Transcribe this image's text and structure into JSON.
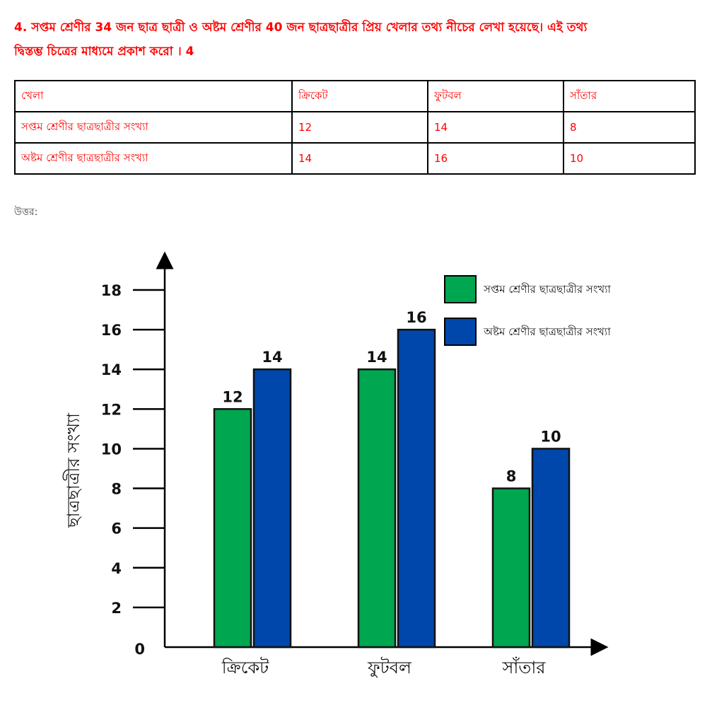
{
  "question": {
    "line1": "4. সপ্তম শ্রেণীর 34 জন ছাত্র ছাত্রী ও অষ্টম শ্রেণীর 40 জন ছাত্রছাত্রীর প্রিয় খেলার তথ্য নীচের লেখা হয়েছে। এই তথ্য",
    "line2": "দ্বিস্তম্ভ চিত্রের মাধ্যমে প্রকাশ করো । 4"
  },
  "table": {
    "headers": [
      "খেলা",
      "ক্রিকেট",
      "ফুটবল",
      "সাঁতার"
    ],
    "rows": [
      [
        "সপ্তম শ্রেণীর ছাত্রছাত্রীর সংখ্যা",
        "12",
        "14",
        "8"
      ],
      [
        "অষ্টম শ্রেণীর ছাত্রছাত্রীর সংখ্যা",
        "14",
        "16",
        "10"
      ]
    ]
  },
  "answer_label": "উত্তর:",
  "colors": {
    "series1": "#00a650",
    "series2": "#0047ab",
    "question_text": "#ff0000"
  },
  "chart_data": {
    "type": "bar",
    "title": "",
    "categories": [
      "ক্রিকেট",
      "ফুটবল",
      "সাঁতার"
    ],
    "series": [
      {
        "name": "সপ্তম শ্রেণীর ছাত্রছাত্রীর সংখ্যা",
        "values": [
          12,
          14,
          8
        ],
        "color": "#00a650"
      },
      {
        "name": "অষ্টম শ্রেণীর ছাত্রছাত্রীর সংখ্যা",
        "values": [
          14,
          16,
          10
        ],
        "color": "#0047ab"
      }
    ],
    "xlabel": "",
    "ylabel": "ছাত্রছাত্রীর সংখ্যা",
    "yticks": [
      0,
      2,
      4,
      6,
      8,
      10,
      12,
      14,
      16,
      18
    ],
    "ylim": [
      0,
      18
    ],
    "grid": false,
    "legend_position": "top-right",
    "data_labels": true
  }
}
